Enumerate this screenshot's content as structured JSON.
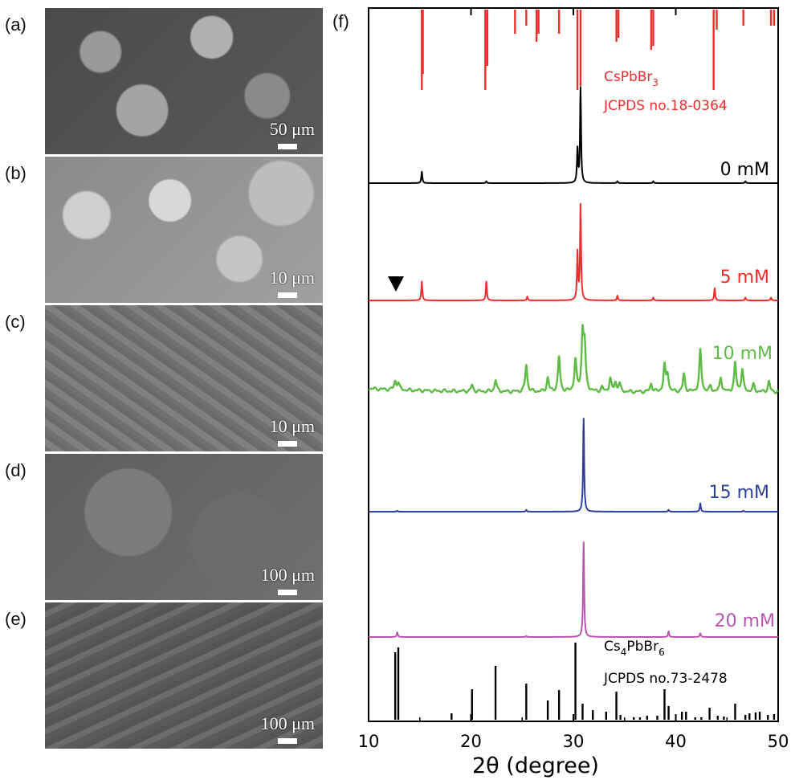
{
  "sem_panels": [
    {
      "label": "(a)",
      "scale": "50 μm"
    },
    {
      "label": "(b)",
      "scale": "10 μm"
    },
    {
      "label": "(c)",
      "scale": "10 μm"
    },
    {
      "label": "(d)",
      "scale": "100 μm"
    },
    {
      "label": "(e)",
      "scale": "100 μm"
    }
  ],
  "chart_data": {
    "type": "line",
    "panel_label": "(f)",
    "xlabel": "2θ (degree)",
    "xlim": [
      10,
      50
    ],
    "xticks": [
      "10",
      "20",
      "30",
      "40",
      "50"
    ],
    "reference_top": {
      "name_parts": [
        "CsPbBr",
        "3"
      ],
      "card": "JCPDS no.18-0364",
      "color": "#ee2d2d",
      "peaks": [
        [
          15.2,
          1.0
        ],
        [
          15.3,
          0.8
        ],
        [
          21.4,
          1.0
        ],
        [
          21.6,
          0.7
        ],
        [
          24.3,
          0.3
        ],
        [
          25.4,
          0.2
        ],
        [
          26.4,
          0.4
        ],
        [
          26.6,
          0.3
        ],
        [
          28.6,
          0.3
        ],
        [
          30.4,
          1.0
        ],
        [
          30.7,
          0.95
        ],
        [
          34.2,
          0.4
        ],
        [
          34.4,
          0.35
        ],
        [
          37.6,
          0.5
        ],
        [
          37.8,
          0.45
        ],
        [
          43.7,
          1.0
        ],
        [
          44.0,
          0.25
        ],
        [
          46.6,
          0.2
        ],
        [
          49.3,
          0.2
        ],
        [
          49.6,
          0.2
        ]
      ]
    },
    "series": [
      {
        "name": "0 mM",
        "color": "#000000",
        "peaks": [
          [
            15.2,
            0.12
          ],
          [
            21.5,
            0.02
          ],
          [
            30.4,
            0.35
          ],
          [
            30.7,
            1.0
          ],
          [
            34.3,
            0.02
          ],
          [
            37.8,
            0.02
          ],
          [
            46.8,
            0.02
          ]
        ]
      },
      {
        "name": "5 mM",
        "color": "#ee2d2d",
        "peaks": [
          [
            15.2,
            0.2
          ],
          [
            21.5,
            0.2
          ],
          [
            25.5,
            0.04
          ],
          [
            30.4,
            0.5
          ],
          [
            30.7,
            1.0
          ],
          [
            34.3,
            0.05
          ],
          [
            37.8,
            0.03
          ],
          [
            43.8,
            0.13
          ],
          [
            46.8,
            0.03
          ],
          [
            49.3,
            0.03
          ]
        ]
      },
      {
        "name": "10 mM",
        "color": "#5dbb46",
        "peaks": [
          [
            12.6,
            0.12
          ],
          [
            12.9,
            0.1
          ],
          [
            20.1,
            0.09
          ],
          [
            22.4,
            0.17
          ],
          [
            25.4,
            0.39
          ],
          [
            27.5,
            0.2
          ],
          [
            28.6,
            0.5
          ],
          [
            30.2,
            0.45
          ],
          [
            30.9,
            0.8
          ],
          [
            31.1,
            0.6
          ],
          [
            32.8,
            0.06
          ],
          [
            33.6,
            0.19
          ],
          [
            34.1,
            0.13
          ],
          [
            34.5,
            0.12
          ],
          [
            37.6,
            0.12
          ],
          [
            38.9,
            0.37
          ],
          [
            39.2,
            0.25
          ],
          [
            40.8,
            0.25
          ],
          [
            42.4,
            0.6
          ],
          [
            43.4,
            0.08
          ],
          [
            44.4,
            0.21
          ],
          [
            45.8,
            0.41
          ],
          [
            46.5,
            0.32
          ],
          [
            47.6,
            0.1
          ],
          [
            49.1,
            0.15
          ]
        ]
      },
      {
        "name": "15 mM",
        "color": "#2e3f9c",
        "peaks": [
          [
            12.8,
            0.01
          ],
          [
            25.4,
            0.02
          ],
          [
            31.0,
            1.0
          ],
          [
            39.3,
            0.02
          ],
          [
            42.4,
            0.09
          ],
          [
            46.6,
            0.01
          ]
        ]
      },
      {
        "name": "20 mM",
        "color": "#b855b0",
        "peaks": [
          [
            12.8,
            0.05
          ],
          [
            25.4,
            0.01
          ],
          [
            31.0,
            1.0
          ],
          [
            39.3,
            0.06
          ],
          [
            42.4,
            0.04
          ]
        ]
      }
    ],
    "reference_bottom": {
      "name_parts": [
        "Cs",
        "4",
        "PbBr",
        "6"
      ],
      "card": "JCPDS no.73-2478",
      "color": "#000000",
      "peaks": [
        [
          12.6,
          0.84
        ],
        [
          12.9,
          0.9
        ],
        [
          18.1,
          0.08
        ],
        [
          20.1,
          0.38
        ],
        [
          22.4,
          0.67
        ],
        [
          25.4,
          0.45
        ],
        [
          27.5,
          0.24
        ],
        [
          28.6,
          0.37
        ],
        [
          30.2,
          0.96
        ],
        [
          30.9,
          0.2
        ],
        [
          31.9,
          0.12
        ],
        [
          33.2,
          0.1
        ],
        [
          34.2,
          0.35
        ],
        [
          34.6,
          0.06
        ],
        [
          35.9,
          0.03
        ],
        [
          36.5,
          0.03
        ],
        [
          37.2,
          0.05
        ],
        [
          38.2,
          0.05
        ],
        [
          38.9,
          0.38
        ],
        [
          39.3,
          0.17
        ],
        [
          40.6,
          0.1
        ],
        [
          41.0,
          0.1
        ],
        [
          41.9,
          0.03
        ],
        [
          42.5,
          0.03
        ],
        [
          43.3,
          0.15
        ],
        [
          44.1,
          0.05
        ],
        [
          44.7,
          0.04
        ],
        [
          45.8,
          0.2
        ],
        [
          46.8,
          0.06
        ],
        [
          47.2,
          0.08
        ],
        [
          47.8,
          0.09
        ],
        [
          48.2,
          0.1
        ],
        [
          49.0,
          0.06
        ],
        [
          49.6,
          0.07
        ]
      ]
    }
  }
}
